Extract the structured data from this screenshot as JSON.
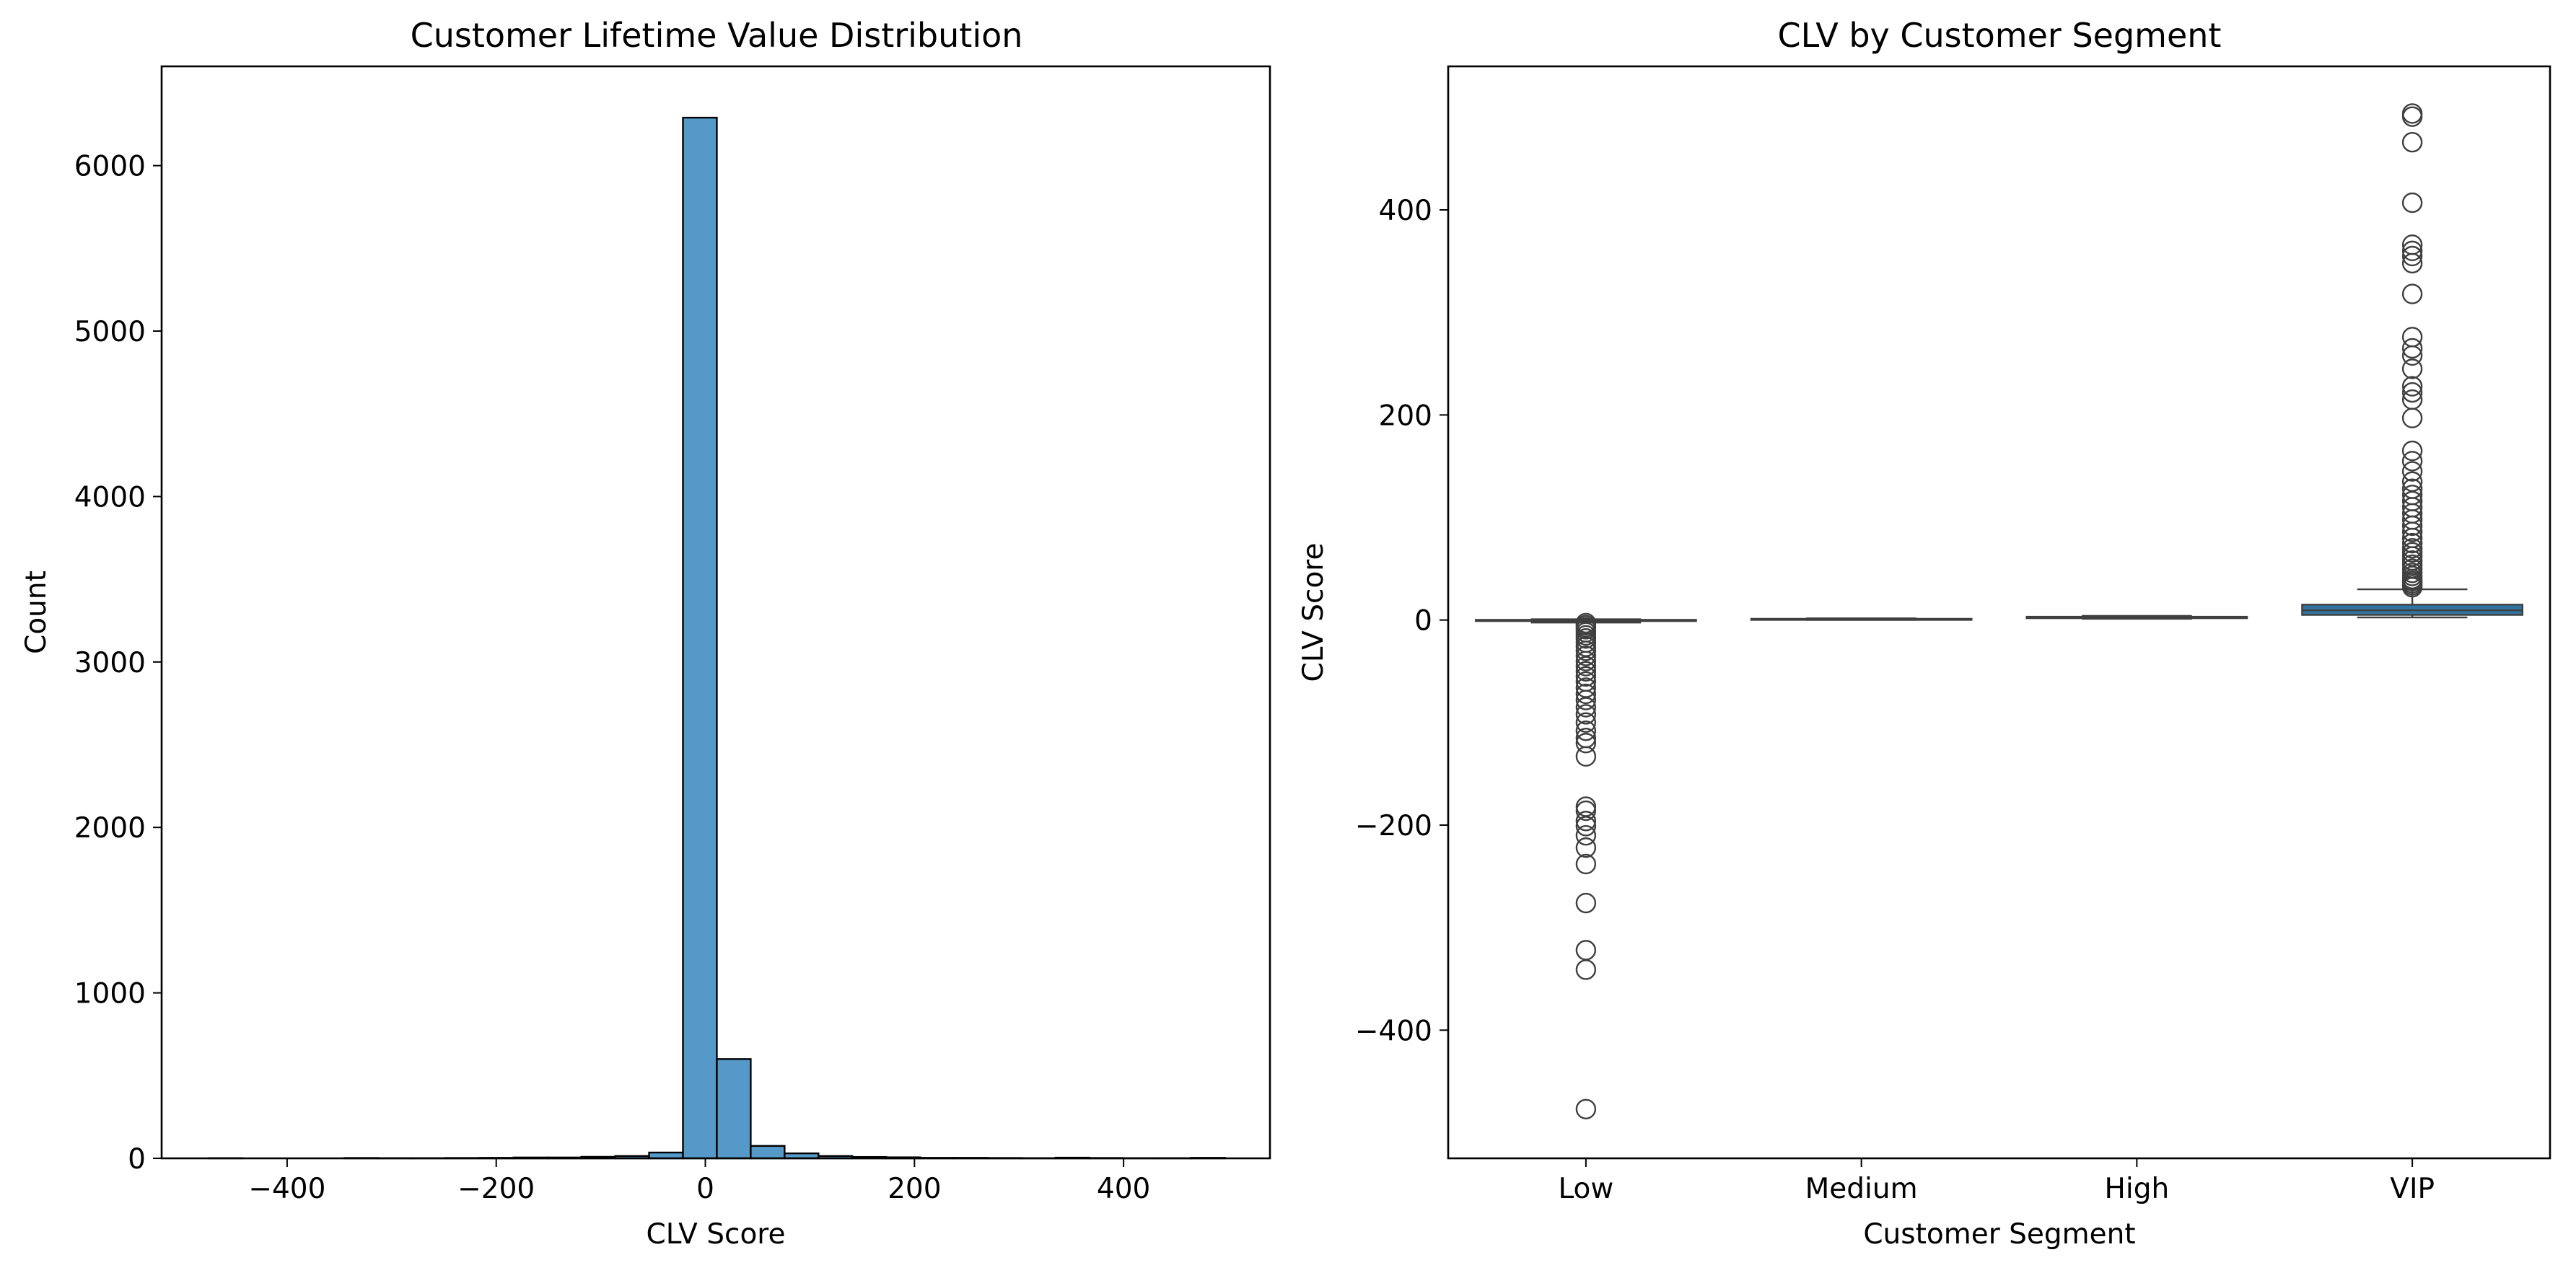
{
  "chart_data": [
    {
      "type": "bar",
      "subtype": "histogram",
      "title": "Customer Lifetime Value Distribution",
      "xlabel": "CLV Score",
      "ylabel": "Count",
      "xlim": [
        -520,
        540
      ],
      "ylim": [
        0,
        6600
      ],
      "xticks": [
        -400,
        -200,
        0,
        200,
        400
      ],
      "yticks": [
        0,
        1000,
        2000,
        3000,
        4000,
        5000,
        6000
      ],
      "bin_edges": [
        -475.0,
        -442.6,
        -410.2,
        -377.8,
        -345.4,
        -313.0,
        -280.6,
        -248.2,
        -215.8,
        -183.4,
        -151.0,
        -118.6,
        -86.2,
        -53.8,
        -21.4,
        11.0,
        43.4,
        75.8,
        108.2,
        140.6,
        173.0,
        205.4,
        237.8,
        270.2,
        302.6,
        335.0,
        367.4,
        399.8,
        432.2,
        464.6,
        497.0
      ],
      "values": [
        1,
        0,
        0,
        0,
        2,
        1,
        1,
        2,
        3,
        5,
        5,
        9,
        14,
        35,
        6290,
        600,
        75,
        30,
        14,
        8,
        6,
        3,
        3,
        2,
        1,
        4,
        2,
        1,
        1,
        3
      ],
      "color": "#5599c8",
      "edgecolor": "#000000",
      "grid": false
    },
    {
      "type": "box",
      "title": "CLV by Customer Segment",
      "xlabel": "Customer Segment",
      "ylabel": "CLV Score",
      "categories": [
        "Low",
        "Medium",
        "High",
        "VIP"
      ],
      "ylim": [
        -525,
        540
      ],
      "yticks": [
        -400,
        -200,
        0,
        200,
        400
      ],
      "boxes": [
        {
          "category": "Low",
          "q1": -1.0,
          "median": -0.2,
          "q3": 0.2,
          "whisker_low": -2.5,
          "whisker_high": 0.8,
          "outliers": [
            -3,
            -5,
            -7,
            -9,
            -12,
            -15,
            -18,
            -22,
            -26,
            -30,
            -35,
            -40,
            -45,
            -50,
            -55,
            -60,
            -66,
            -72,
            -78,
            -85,
            -92,
            -100,
            -108,
            -115,
            -120,
            -133,
            -182,
            -186,
            -196,
            -201,
            -210,
            -222,
            -238,
            -276,
            -322,
            -341,
            -477
          ]
        },
        {
          "category": "Medium",
          "q1": 0.5,
          "median": 0.8,
          "q3": 1.2,
          "whisker_low": 0.2,
          "whisker_high": 1.6,
          "outliers": []
        },
        {
          "category": "High",
          "q1": 1.8,
          "median": 2.4,
          "q3": 3.2,
          "whisker_low": 1.2,
          "whisker_high": 4.0,
          "outliers": []
        },
        {
          "category": "VIP",
          "q1": 5.0,
          "median": 9.5,
          "q3": 15.0,
          "whisker_low": 2.5,
          "whisker_high": 30.0,
          "outliers": [
            32,
            34,
            36,
            38,
            40,
            43,
            46,
            50,
            54,
            58,
            62,
            66,
            70,
            75,
            80,
            86,
            92,
            98,
            104,
            110,
            116,
            122,
            128,
            135,
            145,
            155,
            165,
            197,
            215,
            222,
            228,
            245,
            258,
            265,
            276,
            318,
            348,
            355,
            360,
            366,
            407,
            466,
            491,
            494
          ]
        }
      ],
      "box_color": "#3274a1",
      "line_color": "#3f3f3f",
      "grid": false
    }
  ]
}
